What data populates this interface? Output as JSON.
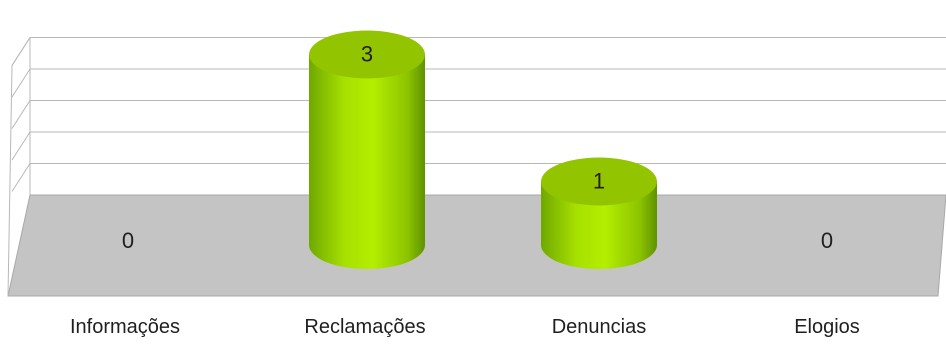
{
  "chart_data": {
    "type": "bar",
    "style": "3d-cylinder",
    "categories": [
      "Informações",
      "Reclamações",
      "Denuncias",
      "Elogios"
    ],
    "values": [
      0,
      3,
      1,
      0
    ],
    "data_labels": [
      "0",
      "3",
      "1",
      "0"
    ],
    "title": "",
    "xlabel": "",
    "ylabel": "",
    "ylim": [
      0,
      5
    ],
    "grid": true,
    "legend": "none",
    "colors": {
      "bar_light": "#b4f000",
      "bar_mid": "#9bd400",
      "bar_dark": "#5f9a00",
      "bar_top": "#93c400",
      "floor": "#c4c4c4",
      "floor_edge": "#a8a8a8",
      "gridline": "#b8b8b8",
      "wall": "#ffffff",
      "text": "#1f1f1f"
    }
  }
}
